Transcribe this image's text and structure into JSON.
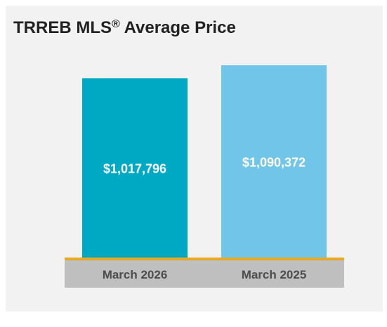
{
  "title_main": "TRREB MLS",
  "title_reg": "®",
  "title_rest": " Average Price",
  "colors": {
    "bar_current": "#00a9c3",
    "bar_previous": "#70c5e8",
    "baseline": "#e8a920",
    "category_band": "#bfbfbf",
    "category_text": "#4d4d4d",
    "value_text": "#ffffff"
  },
  "chart_data": {
    "type": "bar",
    "title": "TRREB MLS® Average Price",
    "categories": [
      "March 2026",
      "March 2025"
    ],
    "values": [
      1017796,
      1090372
    ],
    "value_labels": [
      "$1,017,796",
      "$1,090,372"
    ],
    "xlabel": "",
    "ylabel": "",
    "ylim": [
      0,
      1110000
    ],
    "grid": false,
    "legend": "none"
  }
}
